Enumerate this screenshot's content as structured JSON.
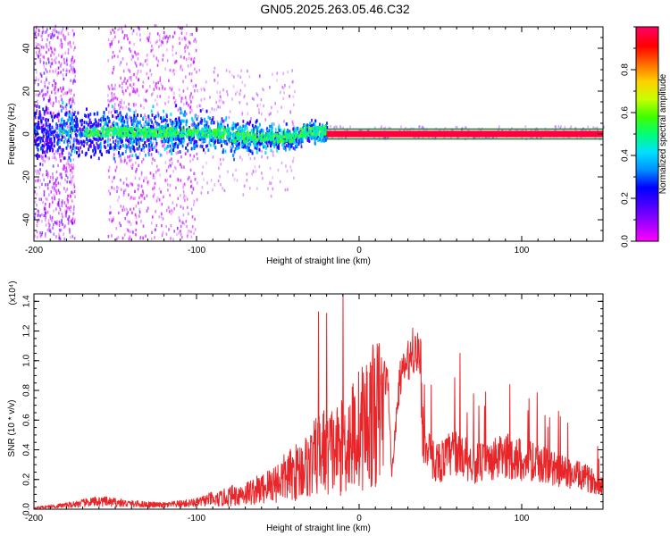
{
  "title": "GN05.2025.263.05.46.C32",
  "colors": {
    "line": "#e8262a",
    "axis": "#000000",
    "colormap": [
      "#ff00ff",
      "#9e00ff",
      "#4a00ff",
      "#0000ff",
      "#0090ff",
      "#00e0ff",
      "#00ff7a",
      "#40ff00",
      "#c8ff00",
      "#ffd000",
      "#ff6a00",
      "#ff0000",
      "#ff0060"
    ]
  },
  "chart_data": [
    {
      "type": "heatmap",
      "name": "spectrogram",
      "xlabel": "Height of straight line (km)",
      "ylabel": "Frequency (Hz)",
      "xlim": [
        -200,
        150
      ],
      "ylim": [
        -50,
        50
      ],
      "x_ticks": [
        -200,
        -100,
        0,
        100
      ],
      "x_tick_labels": [
        "-200",
        "-100",
        "0",
        "100"
      ],
      "y_ticks": [
        -40,
        -20,
        0,
        20,
        40
      ],
      "y_tick_labels": [
        "-40",
        "-20",
        "0",
        "20",
        "40"
      ],
      "colorbar": {
        "label": "Normalized spectral amplitude",
        "range": [
          0,
          1
        ],
        "ticks": [
          0.0,
          0.2,
          0.4,
          0.6,
          0.8
        ],
        "tick_labels": [
          "0.0",
          "0.2",
          "0.4",
          "0.6",
          "0.8"
        ]
      },
      "bands": [
        {
          "name": "carrier-line",
          "x": [
            -20,
            150
          ],
          "center_hz": 0,
          "halfwidth_hz": 1.5,
          "amplitude": 0.97
        },
        {
          "name": "central-band",
          "x": [
            -200,
            -20
          ],
          "center_hz": 0,
          "halfwidth_hz": 8,
          "amplitude_range": [
            0.15,
            0.45
          ]
        },
        {
          "name": "noise-strip-1",
          "x": [
            -200,
            -175
          ],
          "freq": [
            -50,
            50
          ],
          "amplitude_range": [
            0.02,
            0.25
          ]
        },
        {
          "name": "noise-strip-2",
          "x": [
            -155,
            -100
          ],
          "freq": [
            -50,
            50
          ],
          "amplitude_range": [
            0.02,
            0.15
          ]
        }
      ]
    },
    {
      "type": "line",
      "name": "snr",
      "xlabel": "Height of straight line (km)",
      "ylabel": "SNR (10 * v/v)",
      "y_scale_label": "(x10⁴)",
      "xlim": [
        -200,
        150
      ],
      "ylim": [
        0,
        1.45
      ],
      "x_ticks": [
        -200,
        -100,
        0,
        100
      ],
      "x_tick_labels": [
        "-200",
        "-100",
        "0",
        "100"
      ],
      "y_ticks": [
        0,
        0.2,
        0.4,
        0.6,
        0.8,
        1.0,
        1.2,
        1.4
      ],
      "y_tick_labels": [
        "0.0",
        "0.2",
        "0.4",
        "0.6",
        "0.8",
        "1.0",
        "1.2",
        "1.4"
      ],
      "envelope": {
        "x": [
          -200,
          -180,
          -160,
          -140,
          -120,
          -100,
          -90,
          -80,
          -70,
          -60,
          -50,
          -40,
          -30,
          -25,
          -20,
          -15,
          -10,
          -5,
          0,
          5,
          10,
          15,
          18,
          20,
          25,
          30,
          35,
          38,
          40,
          45,
          50,
          55,
          60,
          70,
          80,
          90,
          100,
          110,
          120,
          130,
          140,
          150
        ],
        "y": [
          0.01,
          0.03,
          0.06,
          0.04,
          0.03,
          0.05,
          0.08,
          0.13,
          0.16,
          0.2,
          0.28,
          0.36,
          0.45,
          0.55,
          0.6,
          0.58,
          0.62,
          0.72,
          0.8,
          0.88,
          0.95,
          1.0,
          0.9,
          0.25,
          0.95,
          1.08,
          1.15,
          1.1,
          0.5,
          0.42,
          0.4,
          0.45,
          0.5,
          0.38,
          0.4,
          0.45,
          0.42,
          0.38,
          0.34,
          0.3,
          0.26,
          0.2
        ]
      },
      "peaks": [
        {
          "x": -25,
          "y": 1.33
        },
        {
          "x": -20,
          "y": 1.32
        },
        {
          "x": -10,
          "y": 1.45
        },
        {
          "x": 33,
          "y": 1.22
        },
        {
          "x": 62,
          "y": 1.05
        }
      ]
    }
  ]
}
